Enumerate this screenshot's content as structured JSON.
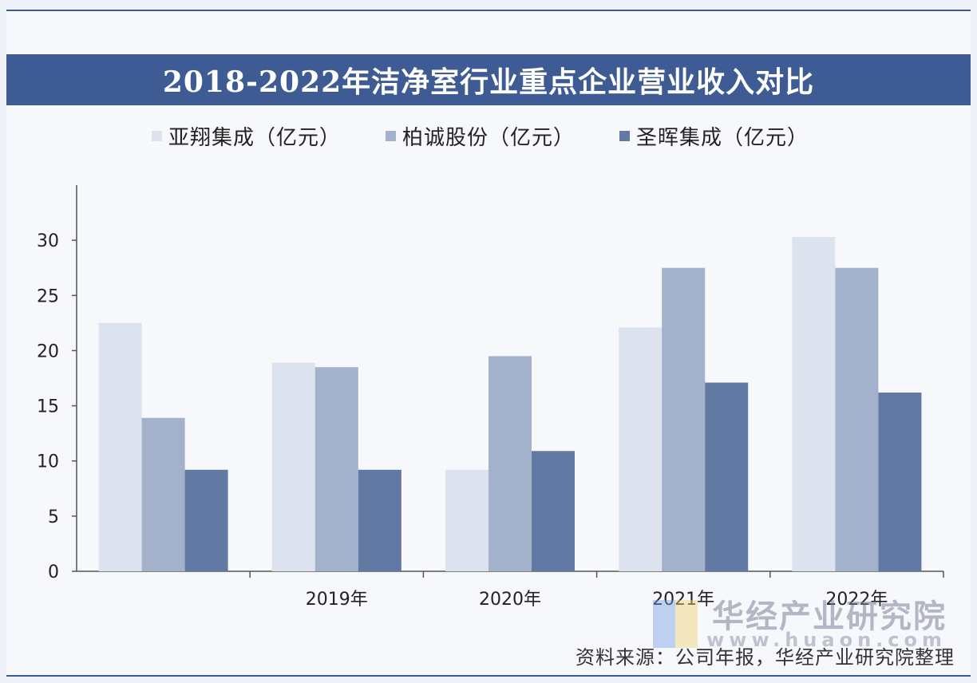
{
  "chart_data": {
    "type": "bar",
    "title": "2018-2022年洁净室行业重点企业营业收入对比",
    "categories": [
      "",
      "2019年",
      "2020年",
      "2021年",
      "2022年"
    ],
    "series": [
      {
        "name": "亚翔集成（亿元）",
        "values": [
          22.5,
          18.9,
          9.2,
          22.1,
          30.3
        ],
        "color": "#dde3ee"
      },
      {
        "name": "柏诚股份（亿元）",
        "values": [
          13.9,
          18.5,
          19.5,
          27.5,
          27.5
        ],
        "color": "#a3b1ca"
      },
      {
        "name": "圣晖集成（亿元）",
        "values": [
          9.2,
          9.2,
          10.9,
          17.1,
          16.2
        ],
        "color": "#627aa3"
      }
    ],
    "ylim": [
      0,
      35
    ],
    "yticks": [
      "0",
      "5",
      "10",
      "15",
      "20",
      "25",
      "30"
    ],
    "xlabel": "",
    "ylabel": "",
    "legend": "top",
    "grid": false
  },
  "source_text": "资料来源：公司年报，华经产业研究院整理",
  "watermark": {
    "brand": "华经产业研究院",
    "url": "www.huaon.com"
  }
}
